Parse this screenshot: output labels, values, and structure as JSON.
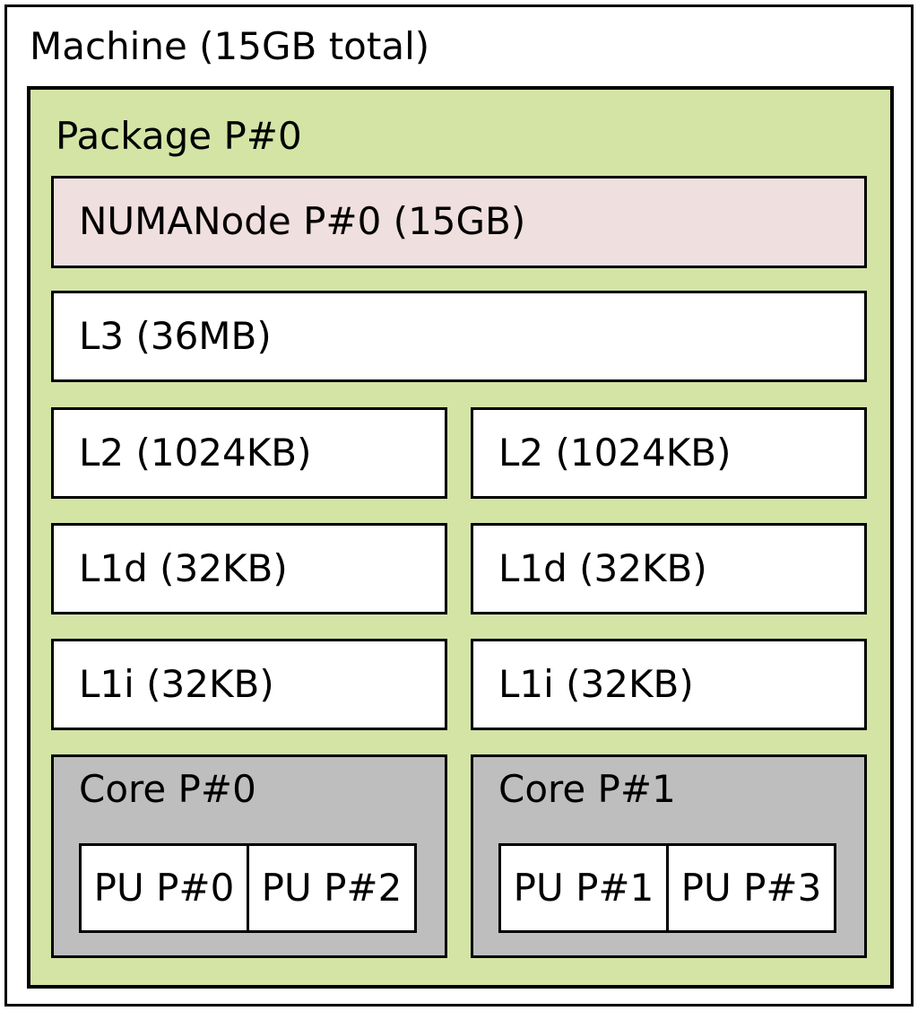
{
  "machine": {
    "label": "Machine (15GB total)"
  },
  "package": {
    "label": "Package P#0"
  },
  "numanode": {
    "label": "NUMANode P#0 (15GB)"
  },
  "l3": {
    "label": "L3 (36MB)"
  },
  "columns": [
    {
      "l2": "L2 (1024KB)",
      "l1d": "L1d (32KB)",
      "l1i": "L1i (32KB)",
      "core": {
        "label": "Core P#0",
        "pus": [
          "PU P#0",
          "PU P#2"
        ]
      }
    },
    {
      "l2": "L2 (1024KB)",
      "l1d": "L1d (32KB)",
      "l1i": "L1i (32KB)",
      "core": {
        "label": "Core P#1",
        "pus": [
          "PU P#1",
          "PU P#3"
        ]
      }
    }
  ],
  "colors": {
    "background": "#ffffff",
    "machine_fill": "#ffffff",
    "package_fill": "#d3e4a5",
    "numanode_fill": "#efdfde",
    "core_fill": "#bebebe",
    "box_fill": "#ffffff",
    "border": "#000000",
    "text": "#000000"
  }
}
